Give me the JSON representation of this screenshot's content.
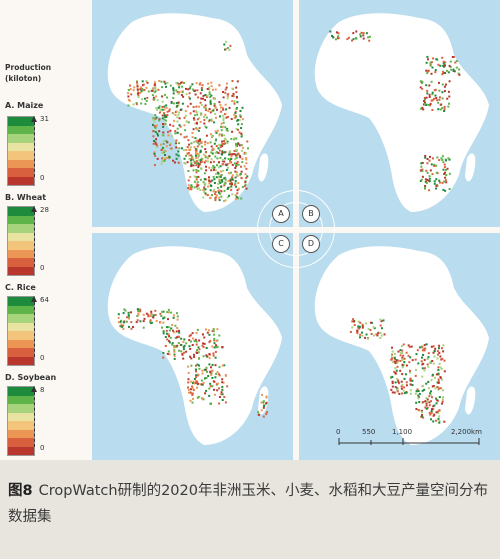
{
  "legend": {
    "header_line1": "Production",
    "header_line2": "(kiloton)",
    "items": [
      {
        "label": "A. Maize",
        "max": "31",
        "min": "0"
      },
      {
        "label": "B. Wheat",
        "max": "28",
        "min": "0"
      },
      {
        "label": "C. Rice",
        "max": "64",
        "min": "0"
      },
      {
        "label": "D. Soybean",
        "max": "8",
        "min": "0"
      }
    ],
    "colors": [
      "#1e8a3b",
      "#5fb449",
      "#a7d37c",
      "#e8e3a0",
      "#f3c47b",
      "#ec9655",
      "#d9603f",
      "#b8362c"
    ]
  },
  "maps": {
    "panel_letters": [
      "A",
      "B",
      "C",
      "D"
    ],
    "scalebar": {
      "ticks": [
        "0",
        "550",
        "1,100",
        "2,200km"
      ]
    }
  },
  "caption": {
    "figure": "图8",
    "text": "CropWatch研制的2020年非洲玉米、小麦、水稻和大豆产量空间分布数据集"
  }
}
